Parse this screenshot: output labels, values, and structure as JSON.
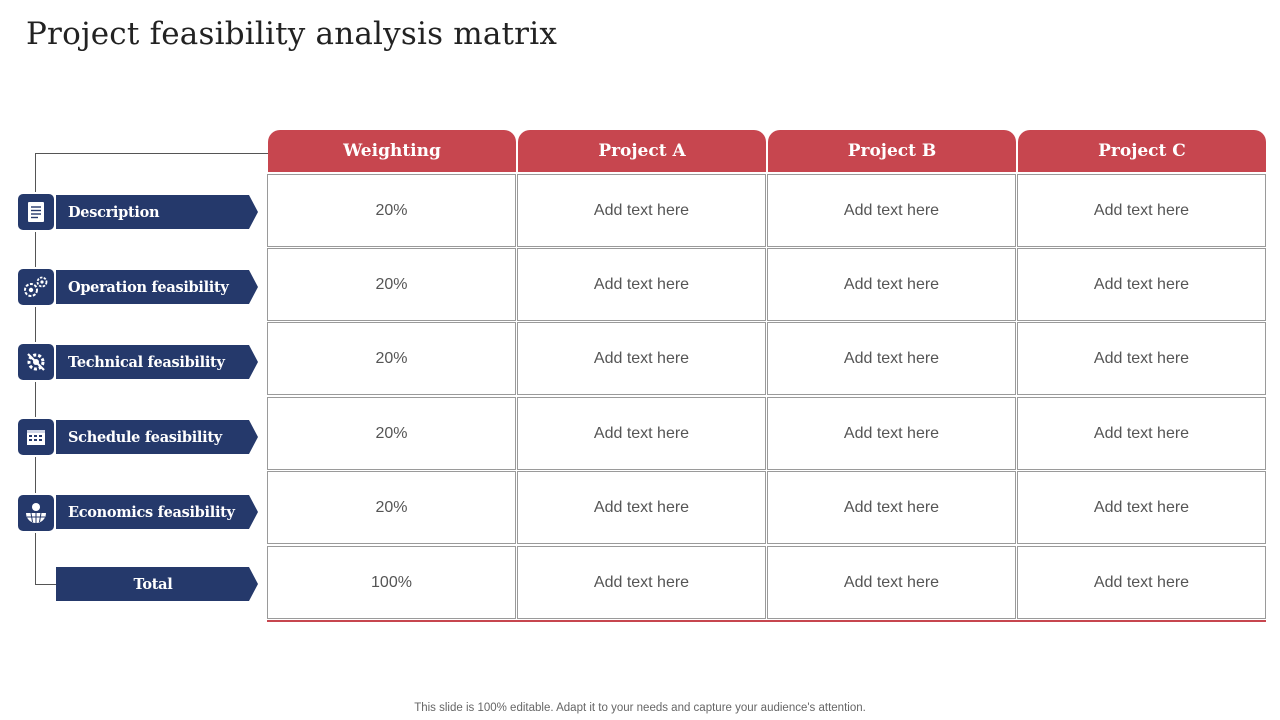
{
  "title": "Project feasibility analysis matrix",
  "columns": [
    "Weighting",
    "Project A",
    "Project B",
    "Project C"
  ],
  "rows": [
    {
      "label": "Description",
      "icon": "document-icon",
      "cells": [
        "20%",
        "Add text here",
        "Add text here",
        "Add text here"
      ]
    },
    {
      "label": "Operation feasibility",
      "icon": "gears-icon",
      "cells": [
        "20%",
        "Add text here",
        "Add text here",
        "Add text here"
      ]
    },
    {
      "label": "Technical feasibility",
      "icon": "wrench-gear-icon",
      "cells": [
        "20%",
        "Add text here",
        "Add text here",
        "Add text here"
      ]
    },
    {
      "label": "Schedule feasibility",
      "icon": "calendar-icon",
      "cells": [
        "20%",
        "Add text here",
        "Add text here",
        "Add text here"
      ]
    },
    {
      "label": "Economics feasibility",
      "icon": "globe-money-icon",
      "cells": [
        "20%",
        "Add text here",
        "Add text here",
        "Add text here"
      ]
    },
    {
      "label": "Total",
      "icon": "",
      "cells": [
        "100%",
        "Add text here",
        "Add text here",
        "Add text here"
      ]
    }
  ],
  "footer": "This slide is 100% editable. Adapt it to your needs and capture your audience's attention.",
  "colors": {
    "header": "#c7464f",
    "label": "#25396b"
  }
}
